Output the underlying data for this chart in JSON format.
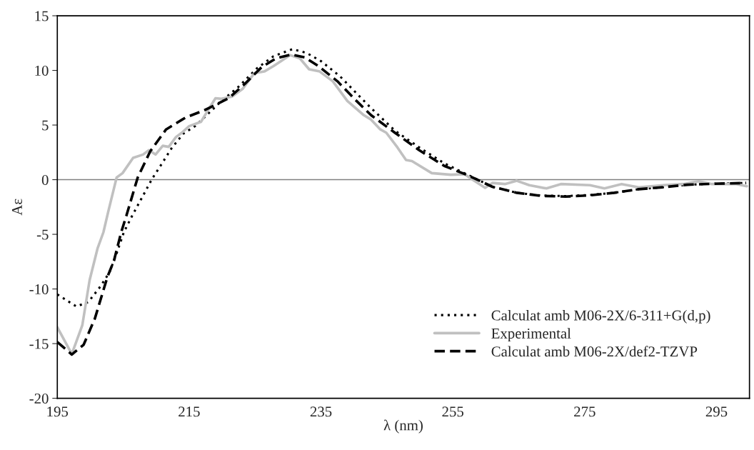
{
  "chart_data": {
    "type": "line",
    "xlabel": "λ (nm)",
    "ylabel": "Aε",
    "xlim": [
      195,
      300
    ],
    "xticks": [
      195,
      215,
      235,
      255,
      275,
      295
    ],
    "ylim": [
      -20,
      15
    ],
    "yticks": [
      -20,
      -15,
      -10,
      -5,
      0,
      5,
      10,
      15
    ],
    "grid": false,
    "legend": "bottom right",
    "marker": "none",
    "ref_lines": [
      {
        "axis": "y",
        "value": 0,
        "color": "#808080",
        "line_style": "solid"
      }
    ],
    "series": [
      {
        "name": "Calculat amb M06-2X/6-311+G(d,p)",
        "color": "#000000",
        "line_style": "dotted",
        "x": [
          195,
          197.9,
          199.7,
          201.5,
          202.9,
          204.0,
          205.1,
          206.4,
          209.4,
          210.9,
          212.3,
          214.1,
          215.9,
          217.3,
          219.9,
          222.4,
          225.3,
          227.8,
          230.7,
          232.8,
          235,
          237.9,
          240.4,
          242.6,
          246.2,
          249.9,
          253.7,
          257.4,
          261,
          264.7,
          268.4,
          272.1,
          275.8,
          279.5,
          283.2,
          286.9,
          290.6,
          294.3,
          299.5
        ],
        "values": [
          -10.5,
          -11.6,
          -11.2,
          -9.8,
          -8.5,
          -6.75,
          -4.8,
          -3.25,
          0.1,
          1.5,
          2.85,
          4.2,
          4.9,
          5.7,
          7.2,
          8.45,
          10.2,
          11.3,
          11.95,
          11.6,
          10.85,
          9.45,
          7.9,
          6.55,
          4.5,
          2.95,
          1.5,
          0.4,
          -0.65,
          -1.2,
          -1.45,
          -1.5,
          -1.4,
          -1.2,
          -0.87,
          -0.69,
          -0.46,
          -0.38,
          -0.3
        ]
      },
      {
        "name": "Experimental",
        "color": "#c0c0c0",
        "line_style": "solid",
        "x": [
          195,
          197.2,
          198.8,
          199.9,
          201.1,
          202,
          202.7,
          204.0,
          204.9,
          206.5,
          208,
          208.9,
          209.9,
          211,
          211.9,
          213,
          213.9,
          215,
          216.8,
          217.9,
          219,
          219.9,
          221.5,
          223.1,
          224.9,
          226.4,
          227.8,
          230.3,
          231.8,
          233.2,
          234.8,
          236.8,
          239,
          241.5,
          242.6,
          244,
          244.9,
          246.6,
          247.9,
          248.8,
          251.8,
          254.7,
          256.8,
          258.5,
          259.9,
          261,
          262.9,
          264.7,
          266.6,
          269.2,
          271.4,
          275.8,
          278,
          280.6,
          283.2,
          286.9,
          289.9,
          292.3,
          294.3,
          298,
          299.6
        ],
        "values": [
          -13.5,
          -15.95,
          -13.3,
          -9.2,
          -6.3,
          -4.8,
          -3.0,
          0.2,
          0.6,
          2.0,
          2.3,
          2.7,
          2.3,
          3.1,
          3.0,
          3.9,
          4.3,
          4.9,
          5.3,
          6.4,
          7.45,
          7.4,
          7.6,
          8.3,
          9.75,
          9.9,
          10.4,
          11.4,
          11.1,
          10.1,
          9.9,
          9.0,
          7.2,
          5.9,
          5.5,
          4.6,
          4.3,
          2.95,
          1.8,
          1.7,
          0.6,
          0.45,
          0.5,
          -0.2,
          -0.75,
          -0.3,
          -0.4,
          -0.1,
          -0.5,
          -0.8,
          -0.4,
          -0.5,
          -0.8,
          -0.4,
          -0.7,
          -0.5,
          -0.4,
          -0.15,
          -0.4,
          -0.4,
          -0.6
        ]
      },
      {
        "name": "Calculat amb M06-2X/def2-TZVP",
        "color": "#000000",
        "line_style": "dashed",
        "x": [
          195,
          197.2,
          199,
          200.7,
          202.6,
          203.6,
          204.7,
          205.5,
          207.2,
          209.1,
          211.5,
          214.5,
          217.3,
          221,
          223.5,
          226,
          228.2,
          230.5,
          232.5,
          234.6,
          237.5,
          240.4,
          242.6,
          246.2,
          249.9,
          253.7,
          257.4,
          261,
          264.7,
          268.4,
          272.1,
          275.8,
          279.5,
          283.2,
          286.9,
          290.6,
          294.3,
          299.5
        ],
        "values": [
          -14.85,
          -16.0,
          -15.1,
          -12.7,
          -8.9,
          -7.4,
          -4.8,
          -3.25,
          0.2,
          2.6,
          4.6,
          5.7,
          6.35,
          7.45,
          8.8,
          10.3,
          11.1,
          11.45,
          11.2,
          10.4,
          9.0,
          7.2,
          5.9,
          4.3,
          2.7,
          1.26,
          0.37,
          -0.65,
          -1.2,
          -1.48,
          -1.55,
          -1.43,
          -1.2,
          -0.87,
          -0.69,
          -0.46,
          -0.38,
          -0.3
        ]
      }
    ]
  }
}
